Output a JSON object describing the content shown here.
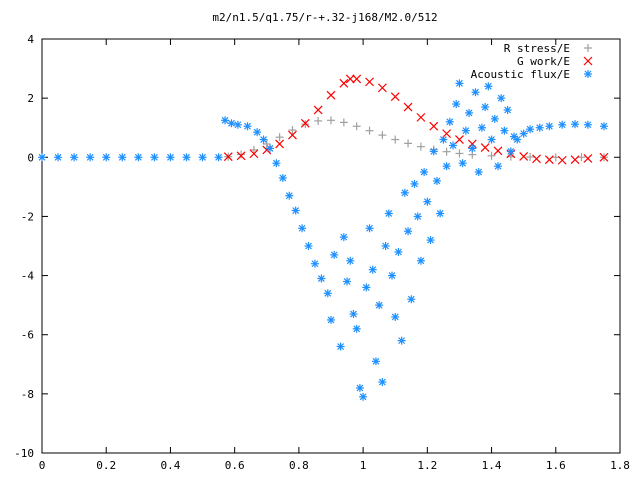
{
  "chart_data": {
    "type": "scatter",
    "title": "m2/n1.5/q1.75/r-+.32-j168/M2.0/512",
    "xlabel": "",
    "ylabel": "",
    "xlim": [
      0,
      1.8
    ],
    "ylim": [
      -10,
      4
    ],
    "x_ticks": [
      0,
      0.2,
      0.4,
      0.6,
      0.8,
      1,
      1.2,
      1.4,
      1.6,
      1.8
    ],
    "x_tick_labels": [
      "0",
      "0.2",
      "0.4",
      "0.6",
      "0.8",
      "1",
      "1.2",
      "1.4",
      "1.6",
      "1.8"
    ],
    "y_ticks": [
      4,
      2,
      0,
      -2,
      -4,
      -6,
      -8,
      -10
    ],
    "y_tick_labels": [
      "4",
      "2",
      "0",
      "-2",
      "-4",
      "-6",
      "-8",
      "-10"
    ],
    "grid": false,
    "legend_position": "top-right",
    "series": [
      {
        "name": "R stress/E",
        "marker": "+",
        "color": "#a0a0a0",
        "points": [
          [
            0.58,
            0.02
          ],
          [
            0.62,
            0.1
          ],
          [
            0.66,
            0.25
          ],
          [
            0.7,
            0.45
          ],
          [
            0.74,
            0.68
          ],
          [
            0.78,
            0.92
          ],
          [
            0.82,
            1.12
          ],
          [
            0.86,
            1.23
          ],
          [
            0.9,
            1.25
          ],
          [
            0.94,
            1.18
          ],
          [
            0.98,
            1.05
          ],
          [
            1.02,
            0.9
          ],
          [
            1.06,
            0.75
          ],
          [
            1.1,
            0.6
          ],
          [
            1.14,
            0.47
          ],
          [
            1.18,
            0.36
          ],
          [
            1.22,
            0.26
          ],
          [
            1.26,
            0.19
          ],
          [
            1.3,
            0.13
          ],
          [
            1.34,
            0.09
          ],
          [
            1.4,
            0.05
          ],
          [
            1.46,
            0.02
          ],
          [
            1.52,
            0.01
          ],
          [
            1.6,
            0.0
          ],
          [
            1.68,
            0.0
          ],
          [
            1.75,
            0.0
          ]
        ]
      },
      {
        "name": "G work/E",
        "marker": "x",
        "color": "#ff0000",
        "points": [
          [
            0.58,
            0.02
          ],
          [
            0.62,
            0.05
          ],
          [
            0.66,
            0.12
          ],
          [
            0.7,
            0.25
          ],
          [
            0.74,
            0.45
          ],
          [
            0.78,
            0.75
          ],
          [
            0.82,
            1.15
          ],
          [
            0.86,
            1.6
          ],
          [
            0.9,
            2.1
          ],
          [
            0.94,
            2.5
          ],
          [
            0.96,
            2.65
          ],
          [
            0.98,
            2.65
          ],
          [
            1.02,
            2.55
          ],
          [
            1.06,
            2.35
          ],
          [
            1.1,
            2.05
          ],
          [
            1.14,
            1.7
          ],
          [
            1.18,
            1.35
          ],
          [
            1.22,
            1.05
          ],
          [
            1.26,
            0.8
          ],
          [
            1.3,
            0.6
          ],
          [
            1.34,
            0.45
          ],
          [
            1.38,
            0.33
          ],
          [
            1.42,
            0.22
          ],
          [
            1.46,
            0.12
          ],
          [
            1.5,
            0.03
          ],
          [
            1.54,
            -0.05
          ],
          [
            1.58,
            -0.08
          ],
          [
            1.62,
            -0.1
          ],
          [
            1.66,
            -0.08
          ],
          [
            1.7,
            -0.04
          ],
          [
            1.75,
            0.0
          ]
        ]
      },
      {
        "name": "Acoustic flux/E",
        "marker": "*",
        "color": "#1e90ff",
        "points": [
          [
            0.0,
            0.0
          ],
          [
            0.05,
            0.0
          ],
          [
            0.1,
            0.0
          ],
          [
            0.15,
            0.0
          ],
          [
            0.2,
            0.0
          ],
          [
            0.25,
            0.0
          ],
          [
            0.3,
            0.0
          ],
          [
            0.35,
            0.0
          ],
          [
            0.4,
            0.0
          ],
          [
            0.45,
            0.0
          ],
          [
            0.5,
            0.0
          ],
          [
            0.55,
            0.0
          ],
          [
            0.57,
            1.25
          ],
          [
            0.59,
            1.15
          ],
          [
            0.61,
            1.1
          ],
          [
            0.64,
            1.05
          ],
          [
            0.67,
            0.85
          ],
          [
            0.69,
            0.6
          ],
          [
            0.71,
            0.3
          ],
          [
            0.73,
            -0.2
          ],
          [
            0.75,
            -0.7
          ],
          [
            0.77,
            -1.3
          ],
          [
            0.79,
            -1.8
          ],
          [
            0.81,
            -2.4
          ],
          [
            0.83,
            -3.0
          ],
          [
            0.85,
            -3.6
          ],
          [
            0.87,
            -4.1
          ],
          [
            0.89,
            -4.6
          ],
          [
            0.9,
            -5.5
          ],
          [
            0.91,
            -3.3
          ],
          [
            0.93,
            -6.4
          ],
          [
            0.94,
            -2.7
          ],
          [
            0.95,
            -4.2
          ],
          [
            0.96,
            -3.5
          ],
          [
            0.97,
            -5.3
          ],
          [
            0.98,
            -5.8
          ],
          [
            0.99,
            -7.8
          ],
          [
            1.0,
            -8.1
          ],
          [
            1.01,
            -4.4
          ],
          [
            1.02,
            -2.4
          ],
          [
            1.03,
            -3.8
          ],
          [
            1.04,
            -6.9
          ],
          [
            1.05,
            -5.0
          ],
          [
            1.06,
            -7.6
          ],
          [
            1.07,
            -3.0
          ],
          [
            1.08,
            -1.9
          ],
          [
            1.09,
            -4.0
          ],
          [
            1.1,
            -5.4
          ],
          [
            1.11,
            -3.2
          ],
          [
            1.12,
            -6.2
          ],
          [
            1.13,
            -1.2
          ],
          [
            1.14,
            -2.5
          ],
          [
            1.15,
            -4.8
          ],
          [
            1.16,
            -0.9
          ],
          [
            1.17,
            -2.0
          ],
          [
            1.18,
            -3.5
          ],
          [
            1.19,
            -0.5
          ],
          [
            1.2,
            -1.5
          ],
          [
            1.21,
            -2.8
          ],
          [
            1.22,
            0.2
          ],
          [
            1.23,
            -0.8
          ],
          [
            1.24,
            -1.9
          ],
          [
            1.25,
            0.6
          ],
          [
            1.26,
            -0.3
          ],
          [
            1.27,
            1.2
          ],
          [
            1.28,
            0.4
          ],
          [
            1.29,
            1.8
          ],
          [
            1.3,
            2.5
          ],
          [
            1.31,
            -0.2
          ],
          [
            1.32,
            0.9
          ],
          [
            1.33,
            1.5
          ],
          [
            1.34,
            0.3
          ],
          [
            1.35,
            2.2
          ],
          [
            1.36,
            -0.5
          ],
          [
            1.37,
            1.0
          ],
          [
            1.38,
            1.7
          ],
          [
            1.39,
            2.4
          ],
          [
            1.4,
            0.6
          ],
          [
            1.41,
            1.3
          ],
          [
            1.42,
            -0.3
          ],
          [
            1.43,
            2.0
          ],
          [
            1.44,
            0.9
          ],
          [
            1.45,
            1.6
          ],
          [
            1.46,
            0.2
          ],
          [
            1.47,
            0.7
          ],
          [
            1.48,
            0.6
          ],
          [
            1.5,
            0.8
          ],
          [
            1.52,
            0.95
          ],
          [
            1.55,
            1.0
          ],
          [
            1.58,
            1.05
          ],
          [
            1.62,
            1.1
          ],
          [
            1.66,
            1.12
          ],
          [
            1.7,
            1.1
          ],
          [
            1.75,
            1.05
          ]
        ]
      }
    ]
  }
}
